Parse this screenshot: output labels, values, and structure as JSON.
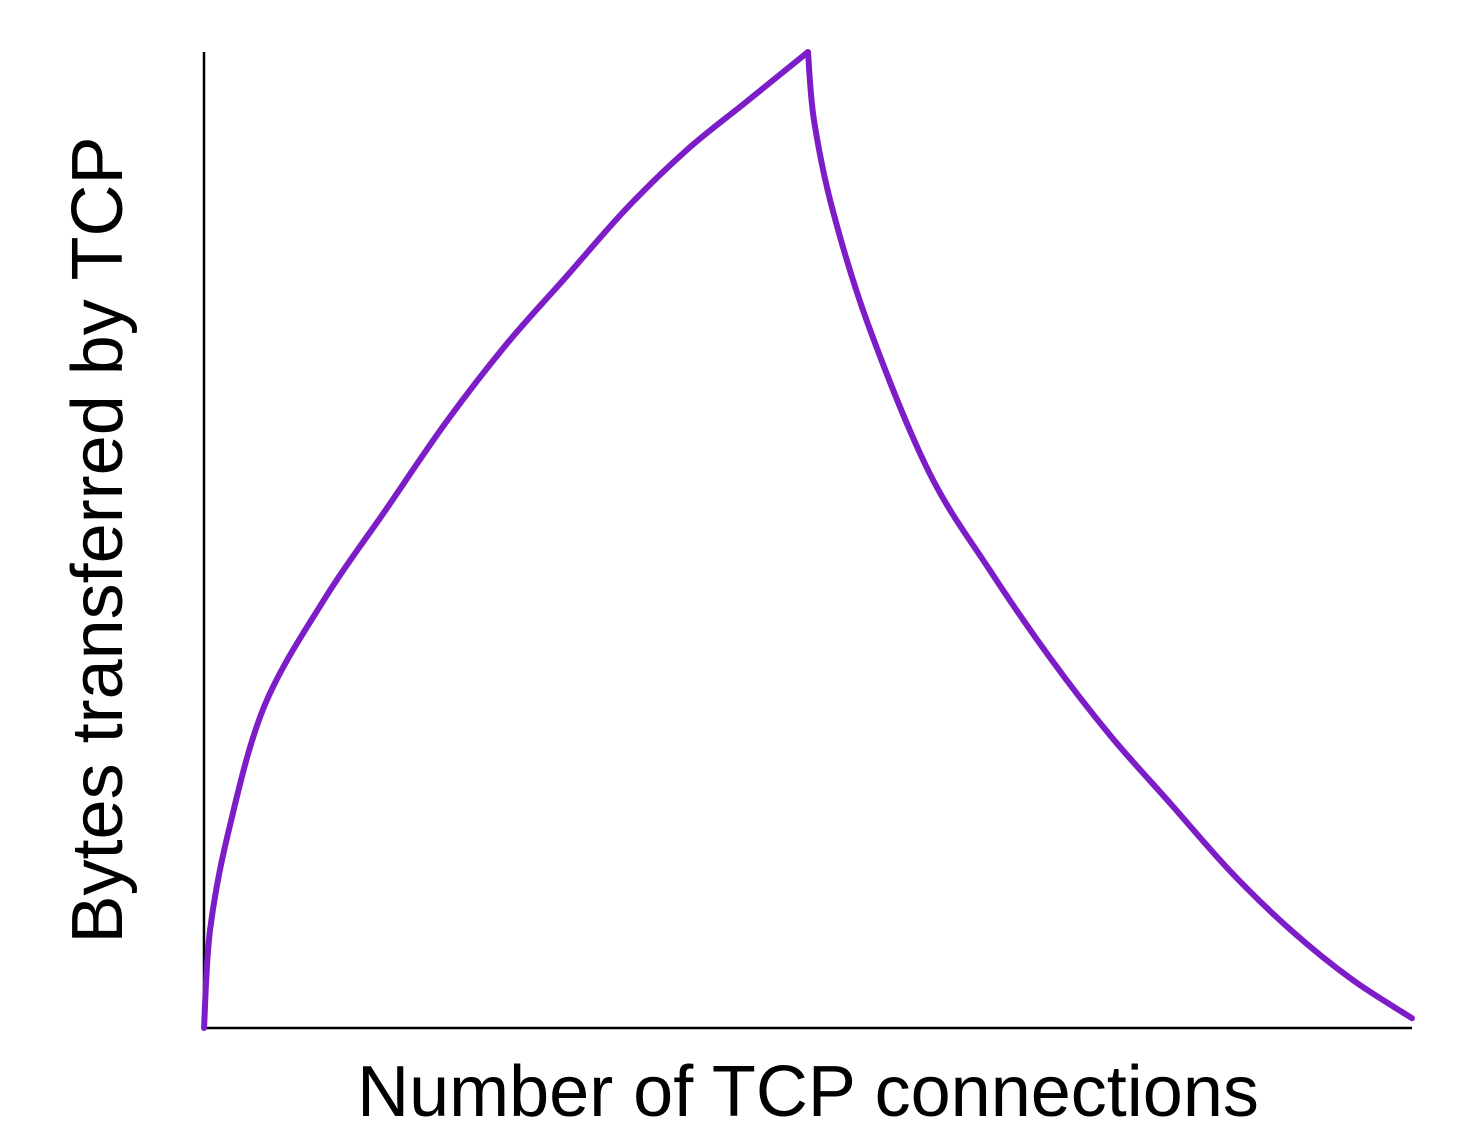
{
  "chart_data": {
    "type": "line",
    "title": "",
    "xlabel": "Number of TCP connections",
    "ylabel": "Bytes transferred by TCP",
    "xlim": [
      0,
      1
    ],
    "ylim": [
      0,
      1
    ],
    "grid": false,
    "legend": "none",
    "colors": {
      "line": "#7d1dc8",
      "axis": "#000000"
    },
    "series": [
      {
        "x": [
          0,
          0.005,
          0.02,
          0.05,
          0.1,
          0.15,
          0.2,
          0.25,
          0.3,
          0.35,
          0.4,
          0.45,
          0.5,
          0.505,
          0.52,
          0.55,
          0.6,
          0.65,
          0.7,
          0.75,
          0.8,
          0.85,
          0.9,
          0.95,
          1.0
        ],
        "values": [
          0,
          0.1,
          0.2,
          0.33,
          0.44,
          0.53,
          0.62,
          0.7,
          0.77,
          0.84,
          0.9,
          0.95,
          1.0,
          0.93,
          0.84,
          0.72,
          0.57,
          0.47,
          0.38,
          0.3,
          0.23,
          0.16,
          0.1,
          0.05,
          0.01
        ]
      }
    ]
  }
}
